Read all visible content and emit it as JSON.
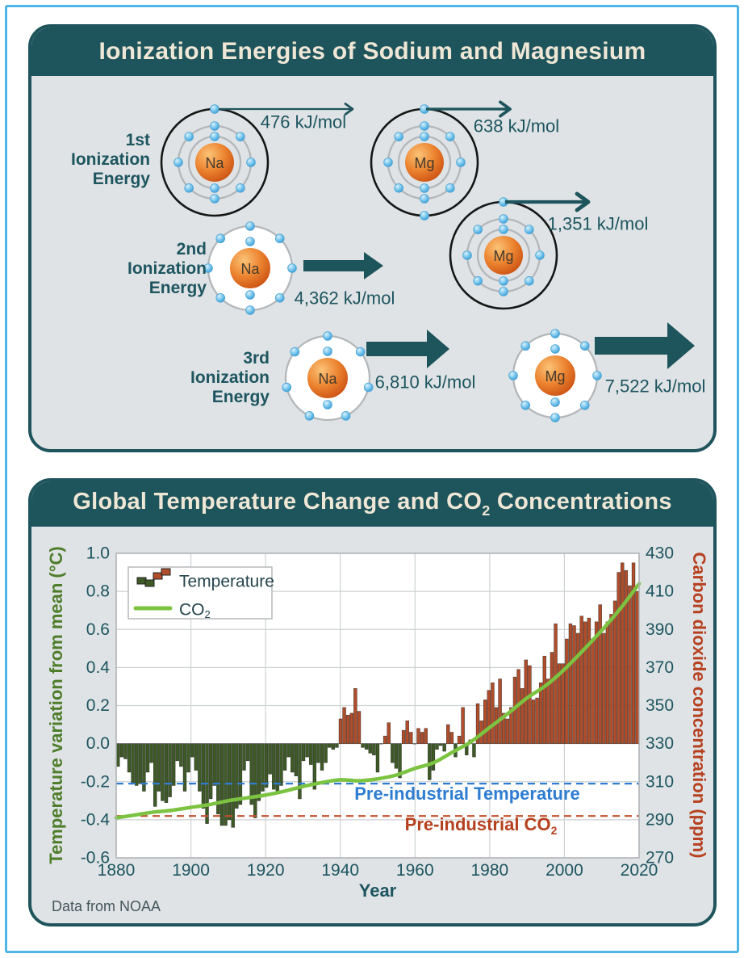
{
  "colors": {
    "frame_blue": "#4fb4e6",
    "teal": "#1e545c",
    "cream": "#efe7d6",
    "panel_bg": "#dfe3e5",
    "nucleus_orange": "#e9762a",
    "electron_blue": "#6fc2ec",
    "shell_gray": "#b3b7b9",
    "shell_black": "#161616",
    "bar_negative": "#3e5a26",
    "bar_positive": "#b04d2a",
    "co2_line_green": "#7cc342",
    "preindustrial_blue": "#2e7dd2",
    "preindustrial_red": "#b5401e",
    "axis_green": "#4e7d2b",
    "axis_red": "#b6401f",
    "tick_teal": "#1d5560",
    "grid": "#cdd1d2"
  },
  "panel1": {
    "title": "Ionization Energies of Sodium and Magnesium",
    "row_labels": [
      "1st Ionization Energy",
      "2nd Ionization Energy",
      "3rd Ionization Energy"
    ],
    "atoms": [
      {
        "id": "na-1st",
        "symbol": "Na",
        "shells": [
          {
            "e": 2
          },
          {
            "e": 8
          },
          {
            "e": 1,
            "ionizing": true
          }
        ]
      },
      {
        "id": "mg-1st",
        "symbol": "Mg",
        "shells": [
          {
            "e": 2
          },
          {
            "e": 8
          },
          {
            "e": 2,
            "ionizing": true
          }
        ]
      },
      {
        "id": "na-2nd",
        "symbol": "Na",
        "shells": [
          {
            "e": 2
          },
          {
            "e": 8
          }
        ]
      },
      {
        "id": "mg-2nd",
        "symbol": "Mg",
        "shells": [
          {
            "e": 2
          },
          {
            "e": 8
          },
          {
            "e": 1,
            "ionizing": true
          }
        ]
      },
      {
        "id": "na-3rd",
        "symbol": "Na",
        "shells": [
          {
            "e": 2
          },
          {
            "e": 7
          }
        ]
      },
      {
        "id": "mg-3rd",
        "symbol": "Mg",
        "shells": [
          {
            "e": 2
          },
          {
            "e": 8
          }
        ]
      }
    ],
    "energies": [
      {
        "atom": "na-1st",
        "value": "476 kJ/mol"
      },
      {
        "atom": "mg-1st",
        "value": "638 kJ/mol"
      },
      {
        "atom": "mg-2nd",
        "value": "1,351 kJ/mol"
      },
      {
        "atom": "na-2nd",
        "value": "4,362 kJ/mol"
      },
      {
        "atom": "na-3rd",
        "value": "6,810 kJ/mol"
      },
      {
        "atom": "mg-3rd",
        "value": "7,522 kJ/mol"
      }
    ]
  },
  "panel2": {
    "title": {
      "base": "Global Temperature Change and CO",
      "sub": "2",
      "rest": " Concentrations"
    },
    "source": "Data from NOAA"
  },
  "chart_data": {
    "type": "bar+line",
    "title": "Global Temperature Change and CO2 Concentrations",
    "xlabel": "Year",
    "ylabel_left": "Temperature variation from mean (°C)",
    "ylabel_right": "Carbon dioxide concentration (ppm)",
    "x_range": [
      1880,
      2020
    ],
    "ylim_left": [
      -0.6,
      1.0
    ],
    "ylim_right": [
      270,
      430
    ],
    "x_ticks": [
      1880,
      1900,
      1920,
      1940,
      1960,
      1980,
      2000,
      2020
    ],
    "left_ticks": [
      1.0,
      0.8,
      0.6,
      0.4,
      0.2,
      0.0,
      -0.2,
      -0.4,
      -0.6
    ],
    "right_ticks": [
      430,
      410,
      390,
      370,
      350,
      330,
      310,
      290,
      270
    ],
    "grid": true,
    "legend": {
      "position": "top-left",
      "temperature_label": "Temperature",
      "co2_label": {
        "base": "CO",
        "sub": "2"
      }
    },
    "temperature": {
      "start_year": 1880,
      "values": [
        -0.12,
        -0.07,
        -0.08,
        -0.15,
        -0.21,
        -0.22,
        -0.21,
        -0.25,
        -0.15,
        -0.1,
        -0.33,
        -0.25,
        -0.3,
        -0.31,
        -0.28,
        -0.22,
        -0.09,
        -0.12,
        -0.25,
        -0.15,
        -0.07,
        -0.14,
        -0.25,
        -0.34,
        -0.42,
        -0.29,
        -0.22,
        -0.37,
        -0.43,
        -0.43,
        -0.4,
        -0.44,
        -0.34,
        -0.32,
        -0.14,
        -0.09,
        -0.32,
        -0.39,
        -0.3,
        -0.25,
        -0.23,
        -0.16,
        -0.24,
        -0.25,
        -0.22,
        -0.14,
        -0.07,
        -0.15,
        -0.17,
        -0.29,
        -0.09,
        -0.07,
        -0.11,
        -0.24,
        -0.1,
        -0.14,
        -0.1,
        -0.02,
        -0.03,
        -0.02,
        0.13,
        0.19,
        0.15,
        0.16,
        0.29,
        0.17,
        -0.02,
        -0.03,
        -0.05,
        -0.06,
        -0.15,
        0.0,
        0.04,
        0.11,
        -0.1,
        -0.13,
        -0.18,
        0.07,
        0.12,
        0.06,
        0.0,
        0.08,
        0.06,
        0.08,
        -0.19,
        -0.14,
        -0.03,
        -0.01,
        -0.04,
        0.1,
        0.06,
        -0.07,
        0.04,
        0.19,
        -0.06,
        0.02,
        -0.07,
        0.21,
        0.12,
        0.23,
        0.28,
        0.32,
        0.19,
        0.34,
        0.16,
        0.13,
        0.19,
        0.35,
        0.39,
        0.29,
        0.44,
        0.41,
        0.23,
        0.24,
        0.32,
        0.46,
        0.34,
        0.48,
        0.63,
        0.42,
        0.42,
        0.55,
        0.63,
        0.62,
        0.58,
        0.67,
        0.64,
        0.66,
        0.55,
        0.64,
        0.73,
        0.58,
        0.64,
        0.68,
        0.75,
        0.9,
        0.95,
        0.91,
        0.83,
        0.95,
        0.8
      ]
    },
    "co2": {
      "years": [
        1880,
        1885,
        1890,
        1895,
        1900,
        1905,
        1910,
        1915,
        1920,
        1925,
        1930,
        1935,
        1940,
        1945,
        1950,
        1955,
        1960,
        1965,
        1970,
        1975,
        1980,
        1985,
        1990,
        1995,
        2000,
        2005,
        2010,
        2015,
        2020
      ],
      "ppm": [
        291,
        292.5,
        294,
        295,
        296.5,
        298,
        300,
        301.5,
        303,
        305,
        307.5,
        309.5,
        311,
        310.5,
        311.5,
        313.5,
        317,
        320,
        325.5,
        331,
        338.5,
        346,
        354,
        360.5,
        369,
        379,
        389.5,
        401,
        414
      ]
    },
    "annotations": [
      {
        "id": "preindustrial-temperature",
        "label": "Pre-industrial Temperature",
        "axis": "left",
        "value": -0.21
      },
      {
        "id": "preindustrial-co2",
        "label_base": "Pre-industrial CO",
        "label_sub": "2",
        "axis": "right",
        "value": 292
      }
    ],
    "source": "Data from NOAA"
  }
}
